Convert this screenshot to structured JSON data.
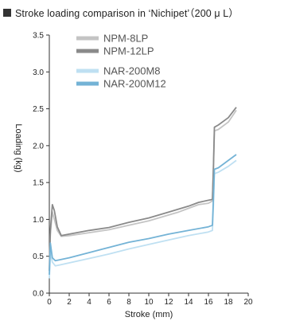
{
  "title": "Stroke loading comparison in ‘Nichipet’（200 μ L）",
  "chart_data": {
    "type": "line",
    "title": "Stroke loading comparison in ‘Nichipet’（200 μ L）",
    "xlabel": "Stroke (mm)",
    "ylabel": "Loading (kg)",
    "xlim": [
      0,
      20
    ],
    "ylim": [
      0,
      3.5
    ],
    "xticks": [
      "0",
      "2",
      "4",
      "6",
      "8",
      "10",
      "12",
      "14",
      "16",
      "18",
      "20"
    ],
    "yticks": [
      "0.0",
      "0.5",
      "1.0",
      "1.5",
      "2.0",
      "2.5",
      "3.0",
      "3.5"
    ],
    "grid": false,
    "legend_position": "top-left",
    "series": [
      {
        "name": "NPM-8LP",
        "color": "#c4c4c4",
        "x": [
          0,
          0.1,
          0.3,
          0.5,
          0.8,
          1.2,
          2,
          4,
          6,
          8,
          10,
          12,
          13,
          14,
          15,
          16,
          16.4,
          16.5,
          16.6,
          17,
          18,
          18.8
        ],
        "y": [
          0.3,
          0.8,
          1.1,
          1.0,
          0.85,
          0.77,
          0.78,
          0.82,
          0.86,
          0.92,
          0.98,
          1.06,
          1.1,
          1.15,
          1.2,
          1.22,
          1.25,
          1.7,
          2.2,
          2.22,
          2.32,
          2.48
        ]
      },
      {
        "name": "NPM-12LP",
        "color": "#8a8a8a",
        "x": [
          0,
          0.1,
          0.3,
          0.5,
          0.8,
          1.2,
          2,
          4,
          6,
          8,
          10,
          12,
          13,
          14,
          15,
          16,
          16.4,
          16.5,
          16.6,
          17,
          18,
          18.8
        ],
        "y": [
          0.3,
          0.85,
          1.2,
          1.12,
          0.9,
          0.78,
          0.8,
          0.85,
          0.89,
          0.96,
          1.02,
          1.1,
          1.14,
          1.18,
          1.23,
          1.26,
          1.27,
          1.72,
          2.25,
          2.28,
          2.38,
          2.52
        ]
      },
      {
        "name": "NAR-200M8",
        "color": "#bfe0f2",
        "x": [
          0,
          0.1,
          0.3,
          0.6,
          1,
          2,
          4,
          6,
          8,
          10,
          12,
          14,
          16,
          16.4,
          16.5,
          16.6,
          17,
          18,
          18.8
        ],
        "y": [
          0.2,
          0.55,
          0.42,
          0.37,
          0.38,
          0.41,
          0.47,
          0.53,
          0.6,
          0.66,
          0.72,
          0.78,
          0.83,
          0.85,
          1.2,
          1.62,
          1.64,
          1.72,
          1.8
        ]
      },
      {
        "name": "NAR-200M12",
        "color": "#74b3d6",
        "x": [
          0,
          0.1,
          0.3,
          0.6,
          1,
          2,
          4,
          6,
          8,
          10,
          12,
          14,
          16,
          16.4,
          16.5,
          16.6,
          17,
          18,
          18.8
        ],
        "y": [
          0.25,
          0.68,
          0.48,
          0.44,
          0.45,
          0.48,
          0.55,
          0.62,
          0.69,
          0.74,
          0.8,
          0.85,
          0.9,
          0.92,
          1.3,
          1.68,
          1.7,
          1.8,
          1.88
        ]
      }
    ]
  }
}
